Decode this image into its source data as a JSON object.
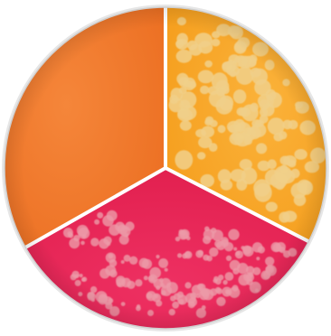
{
  "image": {
    "subject": "tri-plate",
    "sectors": [
      {
        "id": "top-left",
        "color": "#f27a2a",
        "growth": "none"
      },
      {
        "id": "top-right",
        "color": "#f7a623",
        "growth": "round-colonies",
        "colony_color": "#f1d08a"
      },
      {
        "id": "bottom",
        "color": "#e8285a",
        "growth": "spreading-colonies",
        "colony_color": "#ec9aa8"
      }
    ],
    "divider_color": "#ffffff",
    "rim_color": "#d9d9d9",
    "background": "#ffffff"
  }
}
